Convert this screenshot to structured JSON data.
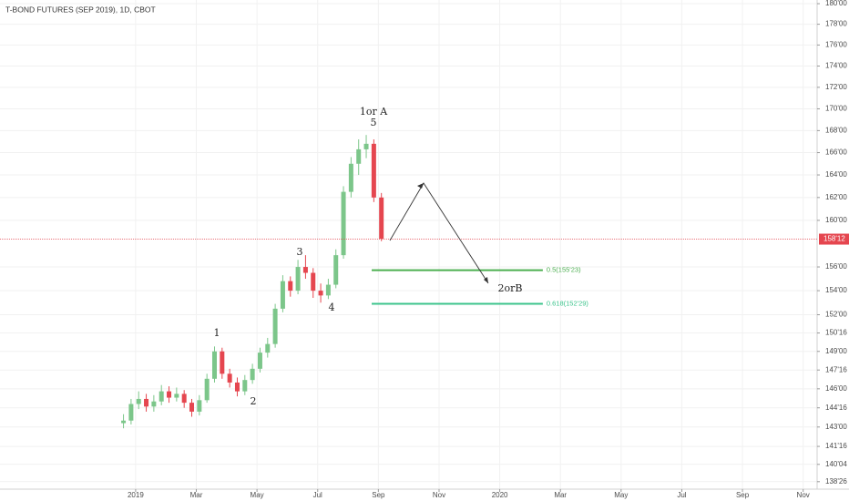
{
  "chart_data": {
    "type": "candlestick",
    "title": "T-BOND FUTURES (SEP 2019), 1D, CBOT",
    "x": [
      -0.4,
      -0.15,
      0.1,
      0.35,
      0.6,
      0.85,
      1.1,
      1.35,
      1.6,
      1.85,
      2.1,
      2.35,
      2.6,
      2.85,
      3.1,
      3.35,
      3.6,
      3.85,
      4.1,
      4.35,
      4.6,
      4.85,
      5.1,
      5.35,
      5.6,
      5.85,
      6.1,
      6.35,
      6.6,
      6.85,
      7.1,
      7.35,
      7.6,
      7.85,
      8.1
    ],
    "open": [
      143.3,
      143.5,
      144.8,
      145.2,
      144.6,
      145.0,
      145.8,
      145.3,
      145.6,
      144.9,
      144.2,
      145.1,
      146.8,
      149.0,
      147.2,
      146.5,
      145.8,
      146.7,
      147.6,
      148.9,
      149.6,
      152.5,
      154.8,
      154.0,
      156.0,
      155.5,
      154.0,
      153.6,
      154.5,
      157.0,
      162.5,
      165.0,
      166.3,
      166.8,
      162.0
    ],
    "high": [
      144.0,
      145.2,
      145.8,
      145.6,
      145.5,
      146.3,
      146.2,
      146.1,
      145.9,
      145.2,
      145.5,
      147.2,
      149.4,
      149.3,
      147.6,
      146.9,
      147.1,
      148.0,
      149.3,
      150.1,
      152.9,
      155.3,
      155.2,
      156.6,
      157.0,
      155.9,
      154.6,
      155.0,
      157.5,
      163.0,
      165.6,
      167.2,
      167.6,
      167.2,
      162.4
    ],
    "low": [
      142.9,
      143.2,
      144.4,
      144.2,
      144.2,
      144.7,
      144.9,
      145.0,
      144.5,
      143.8,
      143.9,
      144.9,
      146.5,
      146.8,
      146.1,
      145.4,
      145.5,
      146.4,
      147.3,
      148.5,
      149.3,
      152.2,
      153.5,
      153.7,
      155.0,
      153.4,
      153.0,
      153.3,
      154.2,
      156.7,
      162.0,
      164.0,
      165.5,
      161.6,
      158.2
    ],
    "close": [
      143.5,
      144.8,
      145.2,
      144.6,
      145.0,
      145.8,
      145.3,
      145.6,
      144.9,
      144.2,
      145.1,
      146.8,
      149.0,
      147.2,
      146.5,
      145.8,
      146.7,
      147.6,
      148.9,
      149.6,
      152.5,
      154.8,
      154.0,
      156.0,
      155.5,
      154.0,
      153.6,
      154.5,
      157.0,
      162.5,
      165.0,
      166.3,
      166.8,
      162.0,
      158.4
    ],
    "up_color": "#7cc68a",
    "down_color": "#e5464f",
    "log_scale": true,
    "ylim": [
      138.25,
      180.36
    ],
    "yticks": [
      {
        "value": 180,
        "label": "180'00"
      },
      {
        "value": 178,
        "label": "178'00"
      },
      {
        "value": 176,
        "label": "176'00"
      },
      {
        "value": 174,
        "label": "174'00"
      },
      {
        "value": 172,
        "label": "172'00"
      },
      {
        "value": 170,
        "label": "170'00"
      },
      {
        "value": 168,
        "label": "168'00"
      },
      {
        "value": 166,
        "label": "166'00"
      },
      {
        "value": 164,
        "label": "164'00"
      },
      {
        "value": 162,
        "label": "162'00"
      },
      {
        "value": 160,
        "label": "160'00"
      },
      {
        "value": 156,
        "label": "156'00"
      },
      {
        "value": 154,
        "label": "154'00"
      },
      {
        "value": 152,
        "label": "152'00"
      },
      {
        "value": 150.5,
        "label": "150'16"
      },
      {
        "value": 149,
        "label": "149'00"
      },
      {
        "value": 147.5,
        "label": "147'16"
      },
      {
        "value": 146,
        "label": "146'00"
      },
      {
        "value": 144.5,
        "label": "144'16"
      },
      {
        "value": 143,
        "label": "143'00"
      },
      {
        "value": 141.5,
        "label": "141'16"
      },
      {
        "value": 140.125,
        "label": "140'04"
      },
      {
        "value": 138.8125,
        "label": "138'26"
      }
    ],
    "xlim": [
      -4.47,
      22.46
    ],
    "xticks": [
      {
        "value": 0,
        "label": "2019"
      },
      {
        "value": 2,
        "label": "Mar"
      },
      {
        "value": 4,
        "label": "May"
      },
      {
        "value": 6,
        "label": "Jul"
      },
      {
        "value": 8,
        "label": "Sep"
      },
      {
        "value": 10,
        "label": "Nov"
      },
      {
        "value": 12,
        "label": "2020"
      },
      {
        "value": 14,
        "label": "Mar"
      },
      {
        "value": 16,
        "label": "May"
      },
      {
        "value": 18,
        "label": "Jul"
      },
      {
        "value": 20,
        "label": "Sep"
      },
      {
        "value": 22,
        "label": "Nov"
      }
    ],
    "last_price": {
      "value": 158.375,
      "label": "158'12",
      "color": "#e5464f"
    },
    "levels": [
      {
        "value": 155.72,
        "label": "0.5(155'23)",
        "color": "#4caf50",
        "x": [
          7.78,
          13.42
        ]
      },
      {
        "value": 152.906,
        "label": "0.618(152'29)",
        "color": "#3cc48c",
        "x": [
          7.78,
          13.42
        ]
      }
    ],
    "annotations": [
      "1or A",
      "5",
      "1",
      "2",
      "3",
      "4",
      "2orB"
    ]
  }
}
